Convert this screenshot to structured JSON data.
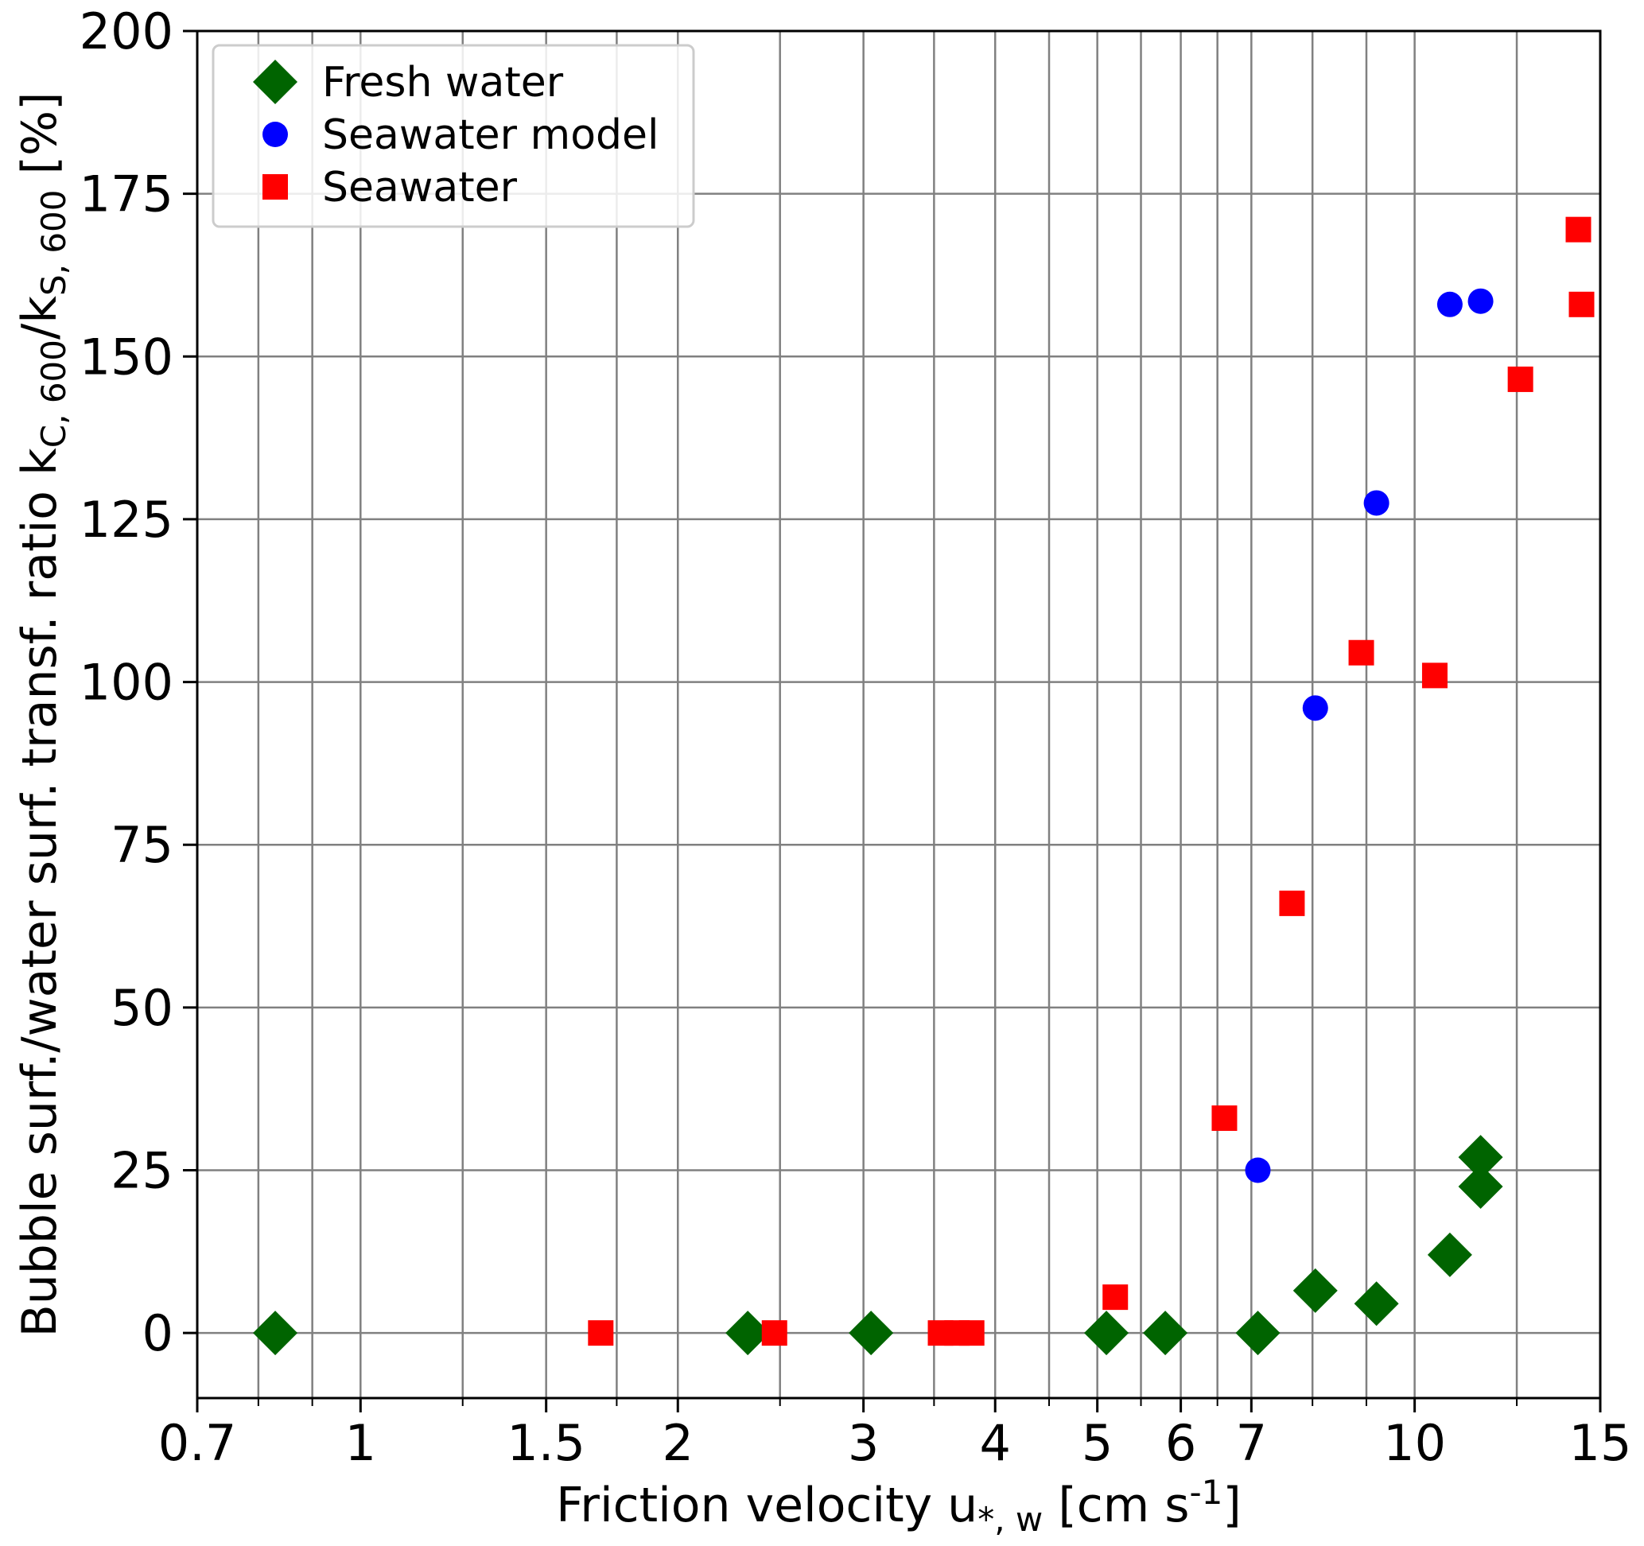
{
  "chart_data": {
    "type": "scatter",
    "xscale": "log",
    "xlim": [
      0.7,
      15
    ],
    "ylim": [
      -10,
      200
    ],
    "grid": true,
    "legend_position": "top-left",
    "xlabel": {
      "prefix": "Friction velocity u",
      "sub": "*, w",
      "mid": " [cm s",
      "sup": "-1",
      "suffix": "]"
    },
    "ylabel": {
      "prefix": "Bubble surf./water surf. transf. ratio k",
      "sub1": "C, 600",
      "mid": "/k",
      "sub2": "S, 600",
      "suffix": " [%]"
    },
    "x_ticks": [
      {
        "value": 0.7,
        "label": "0.7"
      },
      {
        "value": 1,
        "label": "1"
      },
      {
        "value": 1.5,
        "label": "1.5"
      },
      {
        "value": 2,
        "label": "2"
      },
      {
        "value": 3,
        "label": "3"
      },
      {
        "value": 4,
        "label": "4"
      },
      {
        "value": 5,
        "label": "5"
      },
      {
        "value": 6,
        "label": "6"
      },
      {
        "value": 7,
        "label": "7"
      },
      {
        "value": 10,
        "label": "10"
      },
      {
        "value": 15,
        "label": "15"
      }
    ],
    "x_minor_ticks": [
      0.8,
      0.9,
      1.25,
      1.75,
      2.5,
      3.5,
      4.5,
      5.5,
      6.5,
      8,
      9,
      12.5
    ],
    "y_ticks": [
      0,
      25,
      50,
      75,
      100,
      125,
      150,
      175,
      200
    ],
    "series": [
      {
        "name": "Fresh water",
        "marker": "diamond",
        "color": "#006400",
        "points": [
          [
            0.83,
            0
          ],
          [
            2.33,
            0
          ],
          [
            3.05,
            0
          ],
          [
            5.1,
            0
          ],
          [
            5.8,
            0
          ],
          [
            7.1,
            0
          ],
          [
            8.05,
            6.5
          ],
          [
            9.2,
            4.5
          ],
          [
            10.8,
            12
          ],
          [
            11.55,
            27
          ],
          [
            11.55,
            22.5
          ]
        ]
      },
      {
        "name": "Seawater model",
        "marker": "circle",
        "color": "#0000ff",
        "points": [
          [
            7.1,
            25
          ],
          [
            8.05,
            96
          ],
          [
            9.2,
            127.5
          ],
          [
            10.8,
            158
          ],
          [
            11.55,
            158.5
          ]
        ]
      },
      {
        "name": "Seawater",
        "marker": "square",
        "color": "#ff0000",
        "points": [
          [
            1.69,
            0
          ],
          [
            2.47,
            0
          ],
          [
            3.55,
            0
          ],
          [
            3.68,
            0
          ],
          [
            3.8,
            0
          ],
          [
            5.2,
            5.5
          ],
          [
            6.6,
            33
          ],
          [
            7.65,
            66
          ],
          [
            8.9,
            104.5
          ],
          [
            10.45,
            101
          ],
          [
            12.6,
            146.5
          ],
          [
            14.3,
            169.5
          ],
          [
            14.4,
            158
          ]
        ]
      }
    ]
  }
}
